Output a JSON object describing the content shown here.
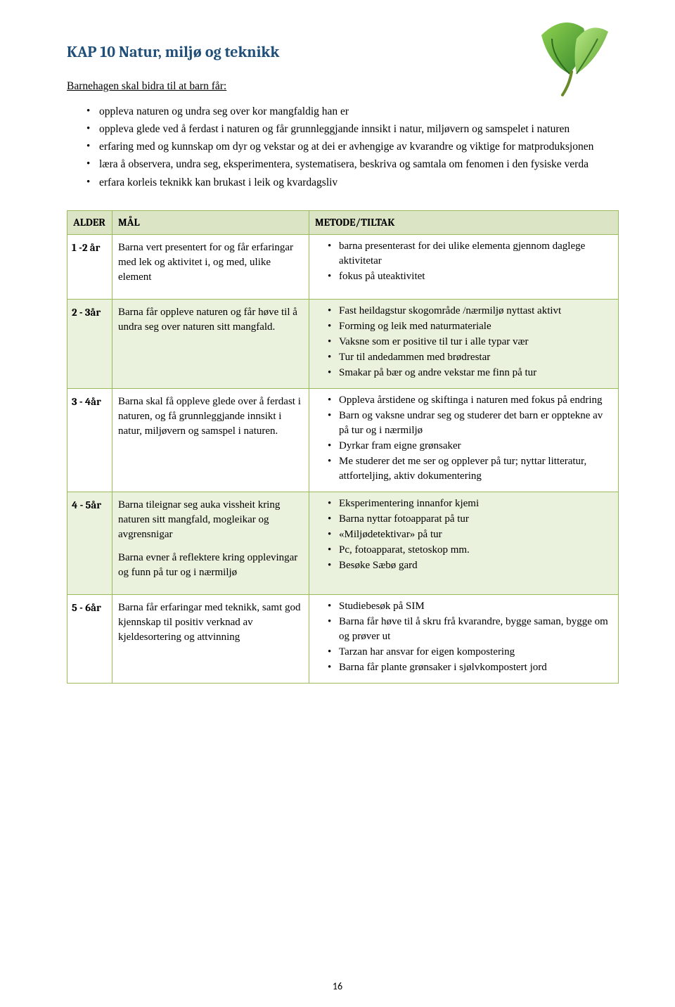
{
  "title": "KAP 10  Natur, miljø og teknikk",
  "intro": "Barnehagen skal bidra til at barn får:",
  "bullets": [
    "oppleva naturen og undra seg over kor mangfaldig han er",
    "oppleva glede ved å ferdast i naturen og får grunnleggjande innsikt i natur, miljøvern og samspelet i naturen",
    "erfaring med og kunnskap om dyr og vekstar og at dei er avhengige av kvarandre og viktige for matproduksjonen",
    "læra å observera, undra seg, eksperimentera, systematisera, beskriva og samtala om fenomen i den fysiske verda",
    "erfara korleis teknikk kan brukast i leik og kvardagsliv"
  ],
  "headers": {
    "age": "ALDER",
    "goal": "MÅL",
    "method": "METODE/TILTAK"
  },
  "rows": [
    {
      "age": "1 -2 år",
      "goal": [
        "Barna vert presentert for og får erfaringar med lek og aktivitet  i, og med, ulike element"
      ],
      "method": [
        "barna presenterast for  dei ulike elementa gjennom daglege aktivitetar",
        "fokus på uteaktivitet"
      ]
    },
    {
      "age": "2 - 3år",
      "goal": [
        "Barna får oppleve naturen og får høve til å undra seg over naturen sitt mangfald."
      ],
      "method": [
        "Fast heildagstur  skogområde /nærmiljø  nyttast aktivt",
        "Forming og leik med naturmateriale",
        "Vaksne som er positive til tur i alle typar vær",
        "Tur til andedammen med brødrestar",
        "Smakar på bær og andre vekstar me finn på tur"
      ]
    },
    {
      "age": "3 - 4år",
      "goal": [
        "Barna skal få oppleve glede over å ferdast i naturen, og få grunnleggjande innsikt i natur, miljøvern og samspel i naturen."
      ],
      "method": [
        "Oppleva årstidene og skiftinga i naturen med fokus på endring",
        "Barn og vaksne undrar seg og studerer det barn er opptekne av på tur og i nærmiljø",
        "Dyrkar fram eigne grønsaker",
        "Me studerer det me ser og opplever på tur; nyttar litteratur, attforteljing, aktiv dokumentering"
      ]
    },
    {
      "age": "4 - 5år",
      "goal": [
        "Barna tileignar seg auka vissheit kring naturen sitt mangfald, mogleikar og avgrensnigar",
        "Barna evner å reflektere kring opplevingar og funn på tur og i nærmiljø"
      ],
      "method": [
        "Eksperimentering innanfor kjemi",
        "Barna nyttar fotoapparat på tur",
        "«Miljødetektivar» på tur",
        "Pc, fotoapparat, stetoskop mm.",
        "Besøke Sæbø gard"
      ]
    },
    {
      "age": "5 - 6år",
      "goal": [
        "Barna får erfaringar med teknikk, samt god kjennskap  til positiv verknad av kjeldesortering og attvinning"
      ],
      "method": [
        "Studiebesøk på SIM",
        "Barna får høve til å skru frå kvarandre,  bygge saman, bygge om og prøver ut",
        "Tarzan har ansvar for eigen kompostering",
        "Barna får plante grønsaker i sjølvkompostert jord"
      ]
    }
  ],
  "page_number": "16",
  "leaf": {
    "fill1": "#6db33f",
    "fill2": "#3a8a2e",
    "stem": "#7aa23a"
  }
}
